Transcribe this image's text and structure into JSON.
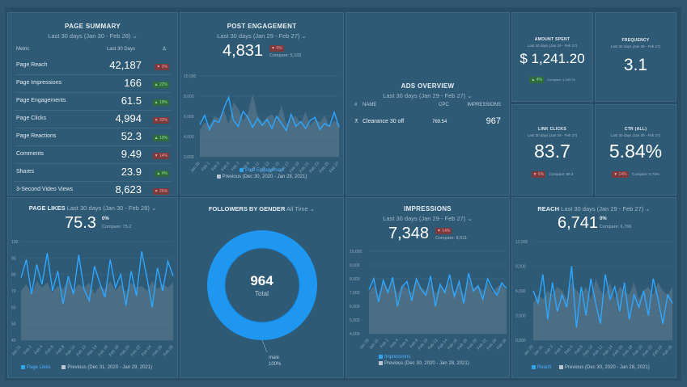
{
  "page_summary": {
    "title": "PAGE SUMMARY",
    "range": "Last 30 days (Jan 30 - Feb 28)",
    "col_metric": "Metric",
    "col_last30": "Last 30 Days",
    "col_delta": "Δ",
    "rows": [
      {
        "label": "Page Reach",
        "value": "42,187",
        "delta": "▼ 3%",
        "dir": "down"
      },
      {
        "label": "Page Impressions",
        "value": "166",
        "delta": "▲ 22%",
        "dir": "up"
      },
      {
        "label": "Page Engagements",
        "value": "61.5",
        "delta": "▲ 19%",
        "dir": "up"
      },
      {
        "label": "Page Clicks",
        "value": "4,994",
        "delta": "▼ 33%",
        "dir": "down"
      },
      {
        "label": "Page Reactions",
        "value": "52.3",
        "delta": "▲ 10%",
        "dir": "up"
      },
      {
        "label": "Comments",
        "value": "9.49",
        "delta": "▼ 14%",
        "dir": "down"
      },
      {
        "label": "Shares",
        "value": "23.9",
        "delta": "▲ 4%",
        "dir": "up"
      },
      {
        "label": "3-Second Video Views",
        "value": "8,623",
        "delta": "▼ 26%",
        "dir": "down"
      }
    ]
  },
  "post_engagement": {
    "title": "POST ENGAGEMENT",
    "range": "Last 30 days (Jan 29 - Feb 27)",
    "value": "4,831",
    "delta": "▼ 5%",
    "compare": "Compare: 5,102",
    "legend_current": "Post Engagement",
    "legend_previous": "Previous (Dec 30, 2020 - Jan 28, 2021)",
    "y_ticks": [
      "10,000",
      "8,000",
      "6,000",
      "4,000",
      "2,000"
    ],
    "x_ticks": [
      "Jan 30",
      "Feb 1",
      "Feb 3",
      "Feb 5",
      "Feb 7",
      "Feb 9",
      "Feb 11",
      "Feb 13",
      "Feb 15",
      "Feb 17",
      "Feb 19",
      "Feb 21",
      "Feb 23",
      "Feb 25",
      "Feb 27"
    ]
  },
  "ads_overview": {
    "title": "ADS OVERVIEW",
    "range": "Last 30 days (Jan 29 - Feb 27)",
    "col_hash": "#",
    "col_name": "NAME",
    "col_cpc": "CPC",
    "col_impressions": "IMPRESSIONS",
    "row": {
      "name": "Clearance 30 off",
      "cpc": "769.54",
      "impressions": "967"
    }
  },
  "amount_spent": {
    "title": "AMOUNT SPENT",
    "range": "Last 30 days (Jan 29 - Feb 27)",
    "value": "$ 1,241.20",
    "delta": "▲ 4%",
    "compare": "Compare: 1,189.74"
  },
  "frequency": {
    "title": "FREQUENCY",
    "range": "Last 30 days (Jan 29 - Feb 27)",
    "value": "3.1"
  },
  "link_clicks": {
    "title": "LINK CLICKS",
    "range": "Last 30 days (Jan 29 - Feb 27)",
    "value": "83.7",
    "delta": "▼ 6%",
    "compare": "Compare: 89.3"
  },
  "ctr": {
    "title": "CTR (ALL)",
    "range": "Last 30 days (Jan 29 - Feb 27)",
    "value": "5.84%",
    "delta": "▼ 14%",
    "compare": "Compare: 6.79%"
  },
  "page_likes": {
    "title": "PAGE LIKES",
    "range": "Last 30 days (Jan 30 - Feb 28)",
    "value": "75.3",
    "delta": "0%",
    "compare": "Compare: 75.2",
    "legend_current": "Page Likes",
    "legend_previous": "Previous (Dec 31, 2020 - Jan 29, 2021)",
    "y_ticks": [
      "100",
      "90",
      "80",
      "70",
      "60",
      "50",
      "40"
    ],
    "x_ticks": [
      "Jan 31",
      "Feb 2",
      "Feb 4",
      "Feb 6",
      "Feb 8",
      "Feb 10",
      "Feb 12",
      "Feb 14",
      "Feb 16",
      "Feb 18",
      "Feb 20",
      "Feb 22",
      "Feb 24",
      "Feb 26",
      "Feb 28"
    ]
  },
  "followers_gender": {
    "title": "FOLLOWERS BY GENDER",
    "range": "All Time",
    "total": "964",
    "total_label": "Total",
    "slice_label": "male",
    "slice_pct": "100%",
    "slice_value": 100
  },
  "impressions": {
    "title": "IMPRESSIONS",
    "range": "Last 30 days (Jan 29 - Feb 27)",
    "value": "7,348",
    "delta": "▼ 14%",
    "compare": "Compare: 8,511",
    "legend_current": "Impressions",
    "legend_previous": "Previous (Dec 30, 2020 - Jan 28, 2021)",
    "y_ticks": [
      "10,000",
      "9,000",
      "8,000",
      "7,000",
      "6,000",
      "5,000",
      "4,000"
    ],
    "x_ticks": [
      "Jan 29",
      "Jan 31",
      "Feb 2",
      "Feb 4",
      "Feb 6",
      "Feb 8",
      "Feb 10",
      "Feb 12",
      "Feb 14",
      "Feb 16",
      "Feb 18",
      "Feb 20",
      "Feb 22",
      "Feb 24",
      "Feb 26"
    ]
  },
  "reach": {
    "title": "REACH",
    "range": "Last 30 days (Jan 29 - Feb 27)",
    "value": "6,741",
    "delta": "0%",
    "compare": "Compare: 6,766",
    "legend_current": "Reach",
    "legend_previous": "Previous (Dec 30, 2020 - Jan 28, 2021)",
    "y_ticks": [
      "12,000",
      "9,000",
      "6,000",
      "3,000",
      "0,000"
    ],
    "x_ticks": [
      "Jan 29",
      "Jan 31",
      "Feb 2",
      "Feb 4",
      "Feb 6",
      "Feb 8",
      "Feb 10",
      "Feb 12",
      "Feb 14",
      "Feb 16",
      "Feb 18",
      "Feb 20",
      "Feb 22",
      "Feb 24",
      "Feb 26"
    ]
  },
  "chart_data": [
    {
      "id": "post_engagement",
      "type": "line",
      "title": "POST ENGAGEMENT",
      "ylim": [
        2000,
        10000
      ],
      "series": [
        {
          "name": "Post Engagement",
          "values": [
            5200,
            6100,
            4700,
            5600,
            5400,
            6800,
            7900,
            5600,
            5000,
            6500,
            5900,
            4900,
            5800,
            5100,
            5700,
            4800,
            6000,
            5300,
            4600,
            6200,
            5000,
            5500,
            4800,
            5600,
            5900,
            4700,
            5300,
            5000,
            6400,
            4900
          ]
        },
        {
          "name": "Previous",
          "values": [
            4600,
            5400,
            5100,
            6000,
            5800,
            6600,
            5200,
            7400,
            6800,
            5600,
            6300,
            8200,
            6100,
            5400,
            5900,
            6200,
            5500,
            7100,
            5200,
            5800,
            6000,
            5300,
            6500,
            5100,
            5700,
            5400,
            6100,
            5000,
            5600,
            5300
          ]
        }
      ]
    },
    {
      "id": "page_likes",
      "type": "line",
      "title": "PAGE LIKES",
      "ylim": [
        40,
        100
      ],
      "series": [
        {
          "name": "Page Likes",
          "values": [
            78,
            89,
            68,
            86,
            74,
            93,
            70,
            82,
            62,
            79,
            68,
            92,
            71,
            64,
            85,
            75,
            66,
            89,
            72,
            80,
            61,
            82,
            67,
            94,
            78,
            60,
            84,
            70,
            88,
            79
          ]
        },
        {
          "name": "Previous",
          "values": [
            70,
            74,
            68,
            76,
            72,
            75,
            69,
            73,
            71,
            77,
            70,
            74,
            72,
            75,
            68,
            73,
            71,
            76,
            70,
            74,
            69,
            75,
            72,
            73,
            70,
            76,
            71,
            74,
            72,
            75
          ]
        }
      ]
    },
    {
      "id": "followers_gender",
      "type": "pie",
      "title": "FOLLOWERS BY GENDER",
      "categories": [
        "male"
      ],
      "values": [
        100
      ]
    },
    {
      "id": "impressions",
      "type": "line",
      "title": "IMPRESSIONS",
      "ylim": [
        4000,
        10000
      ],
      "series": [
        {
          "name": "Impressions",
          "values": [
            7200,
            8000,
            6300,
            7900,
            7000,
            8100,
            6000,
            7400,
            7800,
            6400,
            8000,
            7200,
            6800,
            8200,
            6000,
            7600,
            7000,
            8300,
            6700,
            7800,
            6200,
            8400,
            7100,
            7500,
            6500,
            8000,
            7300,
            6800,
            7700,
            7300
          ]
        },
        {
          "name": "Previous",
          "values": [
            7000,
            7500,
            6800,
            7800,
            7200,
            7900,
            6900,
            7600,
            7300,
            7000,
            8000,
            7400,
            7100,
            7700,
            6900,
            7500,
            7200,
            7800,
            7000,
            7600,
            6800,
            7900,
            7300,
            7500,
            7100,
            7700,
            7000,
            7400,
            7600,
            7200
          ]
        }
      ]
    },
    {
      "id": "reach",
      "type": "line",
      "title": "REACH",
      "ylim": [
        0,
        12000
      ],
      "series": [
        {
          "name": "Reach",
          "values": [
            6000,
            4500,
            8000,
            2500,
            7000,
            3500,
            5500,
            4000,
            9000,
            1500,
            6500,
            3000,
            7500,
            4500,
            2000,
            8000,
            5000,
            6500,
            3500,
            7000,
            2500,
            5500,
            4000,
            6000,
            3000,
            7500,
            5000,
            2000,
            5500,
            4500
          ]
        },
        {
          "name": "Previous",
          "values": [
            4500,
            5500,
            5000,
            6000,
            5500,
            6500,
            6000,
            5000,
            7000,
            6000,
            5500,
            6500,
            5000,
            7500,
            6000,
            5500,
            7000,
            5000,
            6500,
            6000,
            5500,
            7000,
            5000,
            6000,
            6500,
            5500,
            7000,
            6000,
            5500,
            6500
          ]
        }
      ]
    }
  ]
}
